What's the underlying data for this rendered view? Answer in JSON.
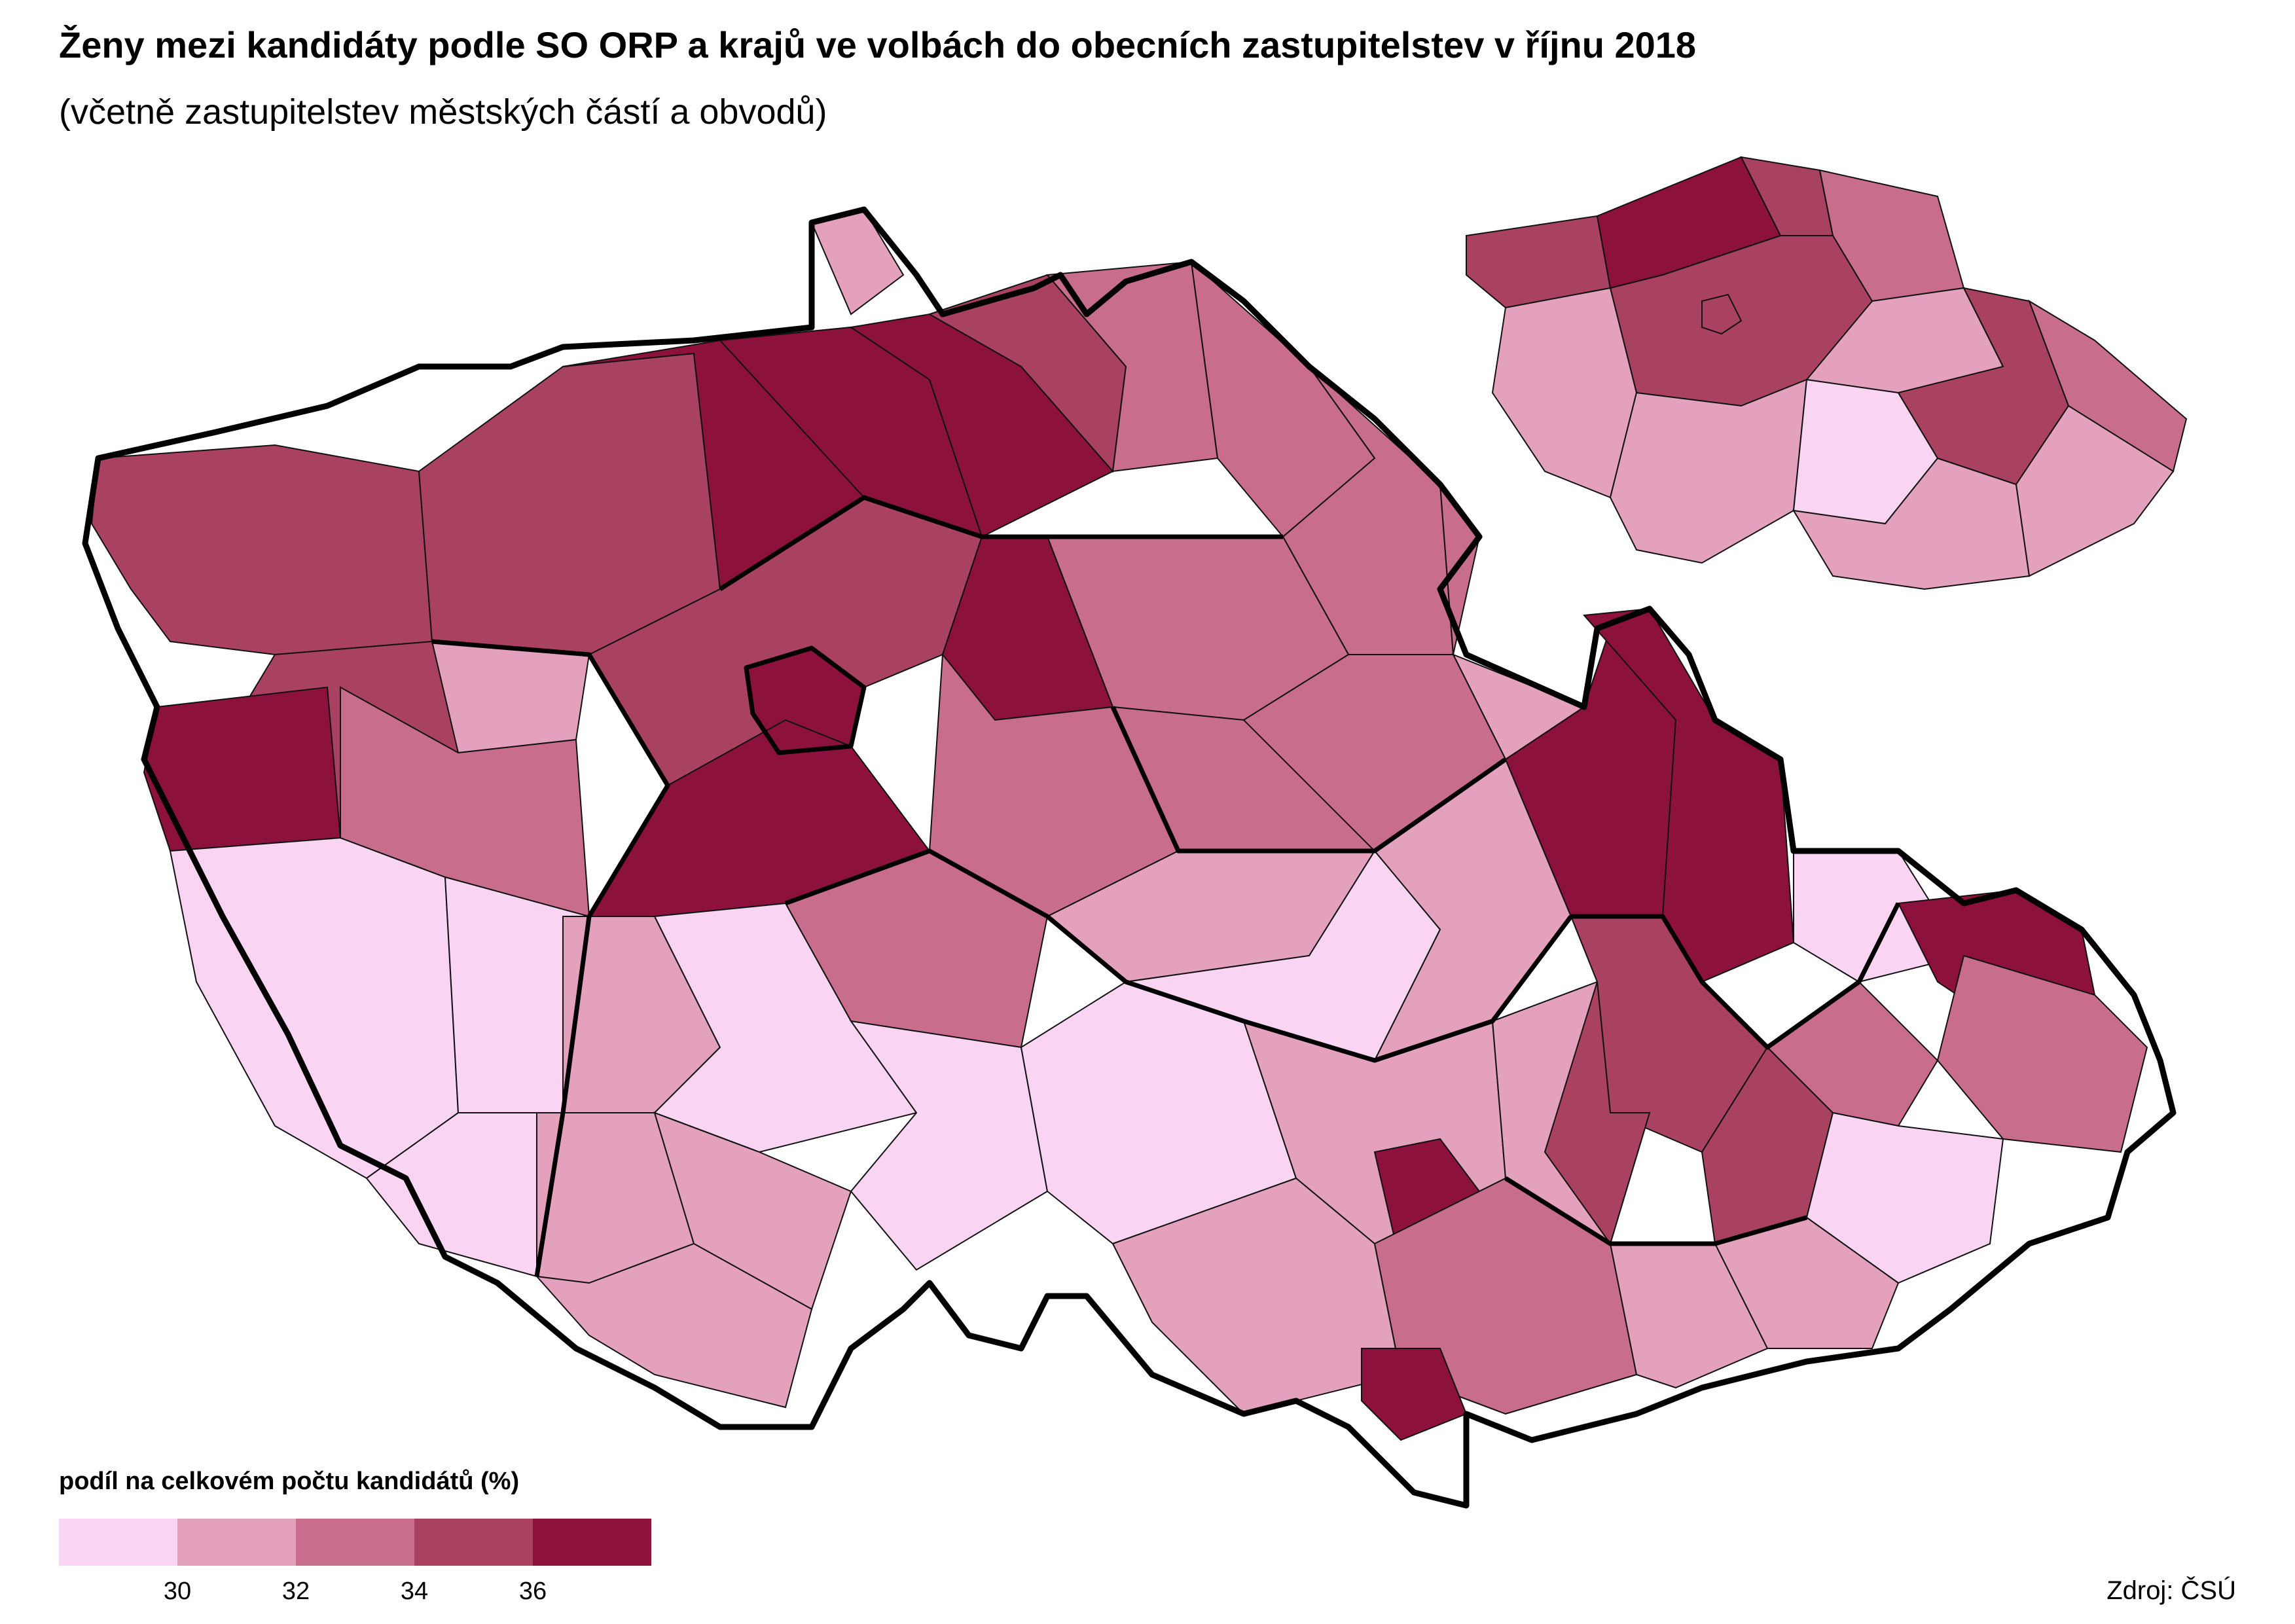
{
  "title": "Ženy mezi kandidáty podle SO ORP a krajů ve volbách do obecních zastupitelstev v říjnu 2018",
  "subtitle": "(včetně zastupitelstev městských částí a obvodů)",
  "legend": {
    "title": "podíl na celkovém počtu kandidátů (%)",
    "classes": [
      {
        "color": "#f9d5f3"
      },
      {
        "color": "#e4a1bd"
      },
      {
        "color": "#c86d8c"
      },
      {
        "color": "#a94260"
      },
      {
        "color": "#8c113c"
      }
    ],
    "ticks": [
      "30",
      "32",
      "34",
      "36"
    ]
  },
  "source": "Zdroj: ČSÚ",
  "map": {
    "orp_regions": [
      {
        "id": "karlovy-vary-west",
        "class": 3
      },
      {
        "id": "cheb",
        "class": 3
      },
      {
        "id": "sokolov",
        "class": 3
      },
      {
        "id": "tachov-north",
        "class": 1
      },
      {
        "id": "domazlice",
        "class": 4
      },
      {
        "id": "plzen-sever",
        "class": 0
      },
      {
        "id": "rokycany",
        "class": 2
      },
      {
        "id": "klatovy",
        "class": 0
      },
      {
        "id": "susice",
        "class": 0
      },
      {
        "id": "most",
        "class": 4
      },
      {
        "id": "usti",
        "class": 4
      },
      {
        "id": "decin-north",
        "class": 1
      },
      {
        "id": "liberec",
        "class": 4
      },
      {
        "id": "jablonec",
        "class": 3
      },
      {
        "id": "semily",
        "class": 2
      },
      {
        "id": "trutnov",
        "class": 2
      },
      {
        "id": "nachod",
        "class": 2
      },
      {
        "id": "hradec",
        "class": 2
      },
      {
        "id": "pardubice",
        "class": 2
      },
      {
        "id": "kladno",
        "class": 3
      },
      {
        "id": "praha",
        "class": 4
      },
      {
        "id": "melnik",
        "class": 4
      },
      {
        "id": "kolin",
        "class": 2
      },
      {
        "id": "kutna-hora",
        "class": 1
      },
      {
        "id": "pribram",
        "class": 4
      },
      {
        "id": "benesov",
        "class": 2
      },
      {
        "id": "pisek",
        "class": 1
      },
      {
        "id": "strakonice",
        "class": 1
      },
      {
        "id": "tabor",
        "class": 0
      },
      {
        "id": "ceske-budejovice",
        "class": 1
      },
      {
        "id": "cesky-krumlov",
        "class": 1
      },
      {
        "id": "jindrichuv-hradec",
        "class": 0
      },
      {
        "id": "jihlava",
        "class": 0
      },
      {
        "id": "havlickuv-brod",
        "class": 0
      },
      {
        "id": "zdar",
        "class": 1
      },
      {
        "id": "trebic",
        "class": 1
      },
      {
        "id": "znojmo",
        "class": 1
      },
      {
        "id": "brno",
        "class": 4
      },
      {
        "id": "blansko",
        "class": 1
      },
      {
        "id": "hodonin",
        "class": 2
      },
      {
        "id": "breclav",
        "class": 4
      },
      {
        "id": "sumperk",
        "class": 4
      },
      {
        "id": "jesenik",
        "class": 4
      },
      {
        "id": "olomouc",
        "class": 3
      },
      {
        "id": "prostejov",
        "class": 3
      },
      {
        "id": "prerov",
        "class": 3
      },
      {
        "id": "opava",
        "class": 0
      },
      {
        "id": "ostrava",
        "class": 4
      },
      {
        "id": "frydek",
        "class": 2
      },
      {
        "id": "novy-jicin",
        "class": 2
      },
      {
        "id": "vsetin",
        "class": 0
      },
      {
        "id": "zlin",
        "class": 1
      },
      {
        "id": "uherske-hradiste",
        "class": 1
      },
      {
        "id": "svitavy",
        "class": 1
      },
      {
        "id": "chrudim",
        "class": 2
      },
      {
        "id": "usti-orlici",
        "class": 2
      }
    ],
    "inset_kraje": [
      {
        "id": "karlovarsky",
        "class": 3
      },
      {
        "id": "ustecky",
        "class": 4
      },
      {
        "id": "liberecky",
        "class": 3
      },
      {
        "id": "kralovehradecky",
        "class": 2
      },
      {
        "id": "pardubicky",
        "class": 1
      },
      {
        "id": "stredocesky",
        "class": 3
      },
      {
        "id": "praha",
        "class": 3
      },
      {
        "id": "plzensky",
        "class": 1
      },
      {
        "id": "jihocesky",
        "class": 1
      },
      {
        "id": "vysocina",
        "class": 0
      },
      {
        "id": "jihomoravsky",
        "class": 1
      },
      {
        "id": "olomoucky",
        "class": 3
      },
      {
        "id": "moravskoslezsky",
        "class": 2
      },
      {
        "id": "zlinsky",
        "class": 1
      }
    ]
  }
}
